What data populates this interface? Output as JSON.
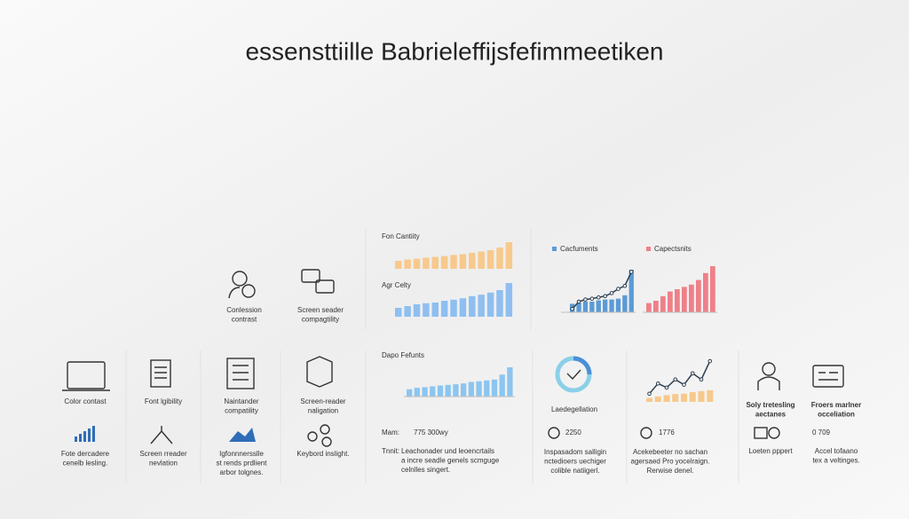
{
  "title": "essensttiille Babrieleffijsfefimmeetiken",
  "top_features": [
    {
      "lines": [
        "Conlession",
        "contrast"
      ]
    },
    {
      "lines": [
        "Screen seader",
        "compagtility"
      ]
    }
  ],
  "charts": [
    {
      "title": "Fon Cantiity",
      "color": "#f7c98c",
      "ylim": [
        0,
        100
      ],
      "values": [
        30,
        35,
        38,
        42,
        45,
        48,
        52,
        55,
        60,
        65,
        70,
        80,
        100
      ]
    },
    {
      "title": "Agr Celty",
      "color": "#8fbff0",
      "ylim": [
        0,
        100
      ],
      "values": [
        25,
        30,
        35,
        38,
        40,
        45,
        48,
        52,
        58,
        62,
        68,
        75,
        95
      ]
    },
    {
      "ylim": [
        0,
        100
      ],
      "series": [
        {
          "name": "Cacfuments",
          "color": "#5b9bd5",
          "values": [
            20,
            22,
            25,
            25,
            28,
            30,
            30,
            32,
            40,
            100
          ],
          "trend": [
            8,
            25,
            30,
            32,
            35,
            38,
            45,
            55,
            62,
            95
          ]
        },
        {
          "name": "Capectsnits",
          "color": "#ef8088",
          "values": [
            20,
            25,
            35,
            45,
            50,
            55,
            60,
            70,
            85,
            100
          ]
        }
      ]
    },
    {
      "title": "Dapo Fefunts",
      "color": "#8cc5f0",
      "ylim": [
        0,
        100
      ],
      "values": [
        25,
        30,
        32,
        35,
        38,
        40,
        42,
        45,
        50,
        52,
        55,
        58,
        75,
        100
      ]
    },
    {
      "color": "#f7c98c",
      "ylim": [
        0,
        100
      ],
      "values": [
        20,
        28,
        35,
        40,
        42,
        50,
        55,
        60
      ],
      "trend": [
        20,
        45,
        35,
        55,
        42,
        70,
        55,
        100
      ]
    }
  ],
  "columns": [
    {
      "label": [
        "Color contast"
      ],
      "desc": [
        "Fote dercadere",
        "cenelb lesling."
      ]
    },
    {
      "label": [
        "Font lgibility"
      ],
      "desc": [
        "Screen rreader",
        "nevlation"
      ]
    },
    {
      "label": [
        "Naintander",
        "compatility"
      ],
      "desc": [
        "Igfonnnersslle",
        "st rends prdlient",
        "arbor tolgnes."
      ]
    },
    {
      "label": [
        "Screen-reader",
        "naligation"
      ],
      "desc": [
        "Keybord inslight."
      ]
    }
  ],
  "stats": {
    "mam_label": "Mam:",
    "mam_value": "775 300wy",
    "tnnit_label": "Tnnit:",
    "tnnit_lines": [
      "Leachonader und leoencrtails",
      "a incre seadle genels scmguge",
      "celnlles singert."
    ],
    "donut_title": "Laedegellation",
    "donut_value": 2250,
    "donut_lines": [
      "Inspasadom salligin",
      "nctedioers uechiger",
      "colible natiigerl."
    ],
    "trend_value": 1776,
    "trend_lines": [
      "Acekebeeter no sachan",
      "agersaed Pro yocelraign.",
      "Rerwise denel."
    ]
  },
  "right": [
    {
      "lines": [
        "Soly tretesling",
        "aectanes"
      ]
    },
    {
      "lines": [
        "Froers marlner",
        "occeliation"
      ]
    },
    {
      "lines": [
        "Loeten pppert"
      ]
    },
    {
      "value": "0 709",
      "lines": [
        "Accel tofaano",
        "tex a veltinges."
      ]
    }
  ]
}
